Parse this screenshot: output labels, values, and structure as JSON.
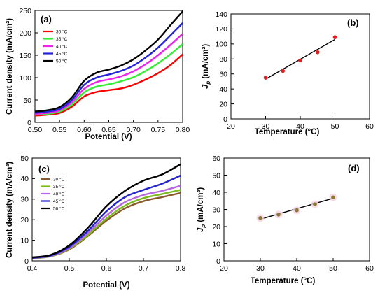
{
  "chart_data": [
    {
      "panel": "(a)",
      "type": "line",
      "xlabel": "Potential (V)",
      "ylabel": "Current density (mA/cm²)",
      "xlim": [
        0.5,
        0.8
      ],
      "ylim": [
        0,
        250
      ],
      "xticks": [
        "0.50",
        "0.55",
        "0.60",
        "0.65",
        "0.70",
        "0.75",
        "0.80"
      ],
      "yticks": [
        "0",
        "50",
        "100",
        "150",
        "200",
        "250"
      ],
      "grid": false,
      "legend": "top-left",
      "x": [
        0.5,
        0.525,
        0.55,
        0.575,
        0.6,
        0.625,
        0.65,
        0.675,
        0.7,
        0.725,
        0.75,
        0.775,
        0.8
      ],
      "series": [
        {
          "name": "30 °C",
          "color": "#ff0000",
          "values": [
            15,
            17,
            21,
            35,
            58,
            68,
            72,
            76,
            84,
            96,
            110,
            128,
            152
          ]
        },
        {
          "name": "35 °C",
          "color": "#33ee33",
          "values": [
            17,
            19,
            24,
            40,
            67,
            80,
            85,
            92,
            101,
            115,
            132,
            152,
            175
          ]
        },
        {
          "name": "40 °C",
          "color": "#ee22ee",
          "values": [
            19,
            21,
            27,
            45,
            75,
            90,
            96,
            103,
            114,
            130,
            150,
            173,
            198
          ]
        },
        {
          "name": "45 °C",
          "color": "#2222dd",
          "values": [
            21,
            24,
            30,
            50,
            84,
            100,
            107,
            115,
            127,
            145,
            167,
            194,
            222
          ]
        },
        {
          "name": "50 °C",
          "color": "#000000",
          "values": [
            24,
            27,
            34,
            56,
            93,
            111,
            118,
            127,
            141,
            161,
            185,
            217,
            248
          ]
        }
      ]
    },
    {
      "panel": "(b)",
      "type": "scatter",
      "xlabel": "Temperature (°C)",
      "ylabel": "Jp (mA/cm²)",
      "xlim": [
        20,
        60
      ],
      "ylim": [
        0,
        140
      ],
      "xticks": [
        "20",
        "30",
        "40",
        "50",
        "60"
      ],
      "yticks": [
        "0",
        "20",
        "40",
        "60",
        "80",
        "100",
        "120",
        "140"
      ],
      "grid": false,
      "x": [
        30,
        35,
        40,
        45,
        50
      ],
      "values": [
        55,
        64,
        78,
        89,
        109
      ],
      "fit": {
        "x": [
          30,
          50
        ],
        "y": [
          53,
          106
        ]
      },
      "marker_color": "#e02020"
    },
    {
      "panel": "(c)",
      "type": "line",
      "xlabel": "Potential (V)",
      "ylabel": "Current density (mA/cm²)",
      "xlim": [
        0.4,
        0.8
      ],
      "ylim": [
        0,
        50
      ],
      "xticks": [
        "0.4",
        "0.5",
        "0.6",
        "0.7",
        "0.8"
      ],
      "yticks": [
        "0",
        "10",
        "20",
        "30",
        "40",
        "50"
      ],
      "grid": false,
      "legend": "top-left",
      "x": [
        0.4,
        0.45,
        0.5,
        0.55,
        0.6,
        0.65,
        0.7,
        0.75,
        0.8
      ],
      "series": [
        {
          "name": "30 °C",
          "color": "#8b5a2b",
          "values": [
            1.2,
            2.2,
            5.5,
            12,
            19.5,
            25.5,
            29,
            31,
            33
          ]
        },
        {
          "name": "35 °C",
          "color": "#7cbb1c",
          "values": [
            1.3,
            2.3,
            5.8,
            12.5,
            20.5,
            26.8,
            30.5,
            32.5,
            34.5
          ]
        },
        {
          "name": "40 °C",
          "color": "#b666e0",
          "values": [
            1.4,
            2.4,
            6.2,
            13.5,
            22,
            28.5,
            32,
            34,
            36.5
          ]
        },
        {
          "name": "45 °C",
          "color": "#2222cc",
          "values": [
            1.5,
            2.6,
            6.8,
            14.5,
            24,
            31,
            34.5,
            37.5,
            41.5
          ]
        },
        {
          "name": "50 °C",
          "color": "#000000",
          "values": [
            1.7,
            2.9,
            7.5,
            16,
            26.5,
            34,
            39,
            42,
            47
          ]
        }
      ]
    },
    {
      "panel": "(d)",
      "type": "scatter",
      "xlabel": "Temperature (°C)",
      "ylabel": "Jp (mA/cm²)",
      "xlim": [
        20,
        60
      ],
      "ylim": [
        0,
        60
      ],
      "xticks": [
        "20",
        "30",
        "40",
        "50",
        "60"
      ],
      "yticks": [
        "0",
        "10",
        "20",
        "30",
        "40",
        "50",
        "60"
      ],
      "grid": false,
      "x": [
        30,
        35,
        40,
        45,
        50
      ],
      "values": [
        25,
        27,
        29.5,
        33,
        37
      ],
      "fit": {
        "x": [
          30,
          50
        ],
        "y": [
          24.3,
          36.5
        ]
      },
      "marker_color": "#8a7a3a"
    }
  ]
}
